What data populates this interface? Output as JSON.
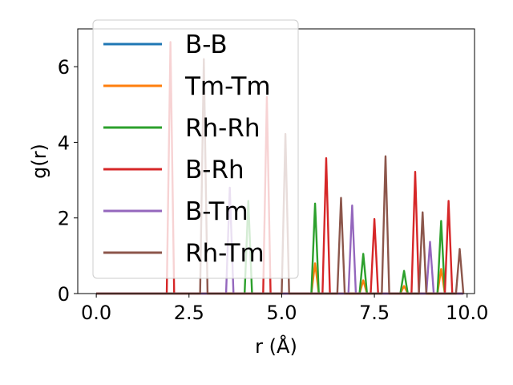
{
  "chart_data": {
    "type": "line",
    "xlabel": "r (Å)",
    "ylabel": "g(r)",
    "xlim": [
      -0.5,
      10.2
    ],
    "ylim": [
      0,
      7.0
    ],
    "x_ticks": [
      0.0,
      2.5,
      5.0,
      7.5,
      10.0
    ],
    "x_tick_labels": [
      "0.0",
      "2.5",
      "5.0",
      "7.5",
      "10.0"
    ],
    "y_ticks": [
      0,
      2,
      4,
      6
    ],
    "y_tick_labels": [
      "0",
      "2",
      "4",
      "6"
    ],
    "grid": false,
    "legend_position": "upper-left",
    "peak_halfwidth": 0.1,
    "x_range": [
      0.0,
      9.9
    ],
    "series": [
      {
        "name": "B-B",
        "color": "#1f77b4",
        "peaks": []
      },
      {
        "name": "Tm-Tm",
        "color": "#ff7f0e",
        "peaks": [
          [
            5.9,
            0.8
          ],
          [
            7.2,
            0.35
          ],
          [
            8.3,
            0.2
          ],
          [
            9.3,
            0.65
          ]
        ]
      },
      {
        "name": "Rh-Rh",
        "color": "#2ca02c",
        "peaks": [
          [
            4.1,
            2.45
          ],
          [
            5.9,
            2.38
          ],
          [
            7.2,
            1.05
          ],
          [
            8.3,
            0.6
          ],
          [
            9.3,
            1.92
          ]
        ]
      },
      {
        "name": "B-Rh",
        "color": "#d62728",
        "peaks": [
          [
            2.0,
            6.65
          ],
          [
            4.6,
            5.2
          ],
          [
            6.2,
            3.58
          ],
          [
            7.5,
            1.97
          ],
          [
            8.6,
            3.22
          ],
          [
            9.5,
            2.45
          ]
        ]
      },
      {
        "name": "B-Tm",
        "color": "#9467bd",
        "peaks": [
          [
            3.6,
            2.8
          ],
          [
            6.9,
            2.33
          ],
          [
            9.0,
            1.37
          ]
        ]
      },
      {
        "name": "Rh-Tm",
        "color": "#8c564b",
        "peaks": [
          [
            2.9,
            6.2
          ],
          [
            5.1,
            4.22
          ],
          [
            6.6,
            2.53
          ],
          [
            7.8,
            3.63
          ],
          [
            8.8,
            2.15
          ],
          [
            9.8,
            1.18
          ]
        ]
      }
    ]
  }
}
